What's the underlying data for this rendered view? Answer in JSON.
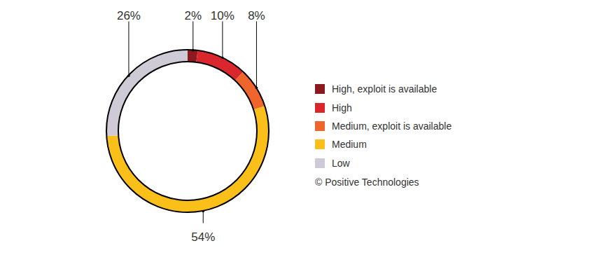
{
  "chart_data": {
    "type": "donut",
    "categories": [
      "High, exploit is available",
      "High",
      "Medium, exploit is available",
      "Medium",
      "Low"
    ],
    "values": [
      2,
      10,
      8,
      54,
      26
    ],
    "value_labels": [
      "2%",
      "10%",
      "8%",
      "54%",
      "26%"
    ],
    "colors": [
      "#8b1a1e",
      "#d9272d",
      "#f0652b",
      "#fbbf1a",
      "#cfcbd6"
    ],
    "data_labels": true,
    "legend": "right",
    "caption": "© Positive Technologies"
  }
}
